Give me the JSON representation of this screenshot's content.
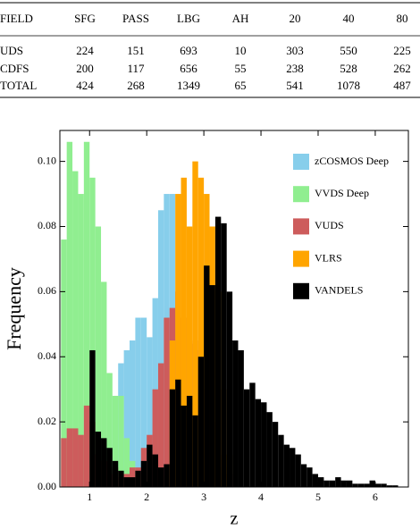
{
  "table": {
    "header": [
      "FIELD",
      "SFG",
      "PASS",
      "LBG",
      "AH",
      "20",
      "40",
      "80"
    ],
    "rows": [
      [
        "UDS",
        "224",
        "151",
        "693",
        "10",
        "303",
        "550",
        "225"
      ],
      [
        "CDFS",
        "200",
        "117",
        "656",
        "55",
        "238",
        "528",
        "262"
      ],
      [
        "TOTAL",
        "424",
        "268",
        "1349",
        "65",
        "541",
        "1078",
        "487"
      ]
    ]
  },
  "chart_data": {
    "type": "histogram",
    "xlabel": "z",
    "ylabel": "Frequency",
    "xlim": [
      0.48,
      6.58
    ],
    "ylim": [
      0,
      0.1095
    ],
    "xticks": [
      1,
      2,
      3,
      4,
      5,
      6
    ],
    "yticks": [
      {
        "value": 0,
        "label": "0.00"
      },
      {
        "value": 0.02,
        "label": "0.02"
      },
      {
        "value": 0.04,
        "label": "0.04"
      },
      {
        "value": 0.06,
        "label": "0.06"
      },
      {
        "value": 0.08,
        "label": "0.08"
      },
      {
        "value": 0.1,
        "label": "0.10"
      }
    ],
    "legend": "upper right",
    "bins": [
      0.5,
      0.6,
      0.7,
      0.8,
      0.9,
      1.0,
      1.1,
      1.2,
      1.3,
      1.4,
      1.5,
      1.6,
      1.7,
      1.8,
      1.9,
      2.0,
      2.1,
      2.2,
      2.3,
      2.4,
      2.5,
      2.6,
      2.7,
      2.8,
      2.9,
      3.0,
      3.1,
      3.2,
      3.3,
      3.4,
      3.5,
      3.6,
      3.7,
      3.8,
      3.9,
      4.0,
      4.1,
      4.2,
      4.3,
      4.4,
      4.5,
      4.6,
      4.7,
      4.8,
      4.9,
      5.0,
      5.1,
      5.2,
      5.3,
      5.4,
      5.5,
      5.6,
      5.7,
      5.8,
      5.9,
      6.0,
      6.1,
      6.2,
      6.3,
      6.4
    ],
    "series": [
      {
        "name": "zCOSMOS Deep",
        "color": "#87ceeb",
        "values": [
          0,
          0,
          0,
          0,
          0,
          0,
          0,
          0,
          0,
          0.028,
          0.038,
          0.042,
          0.045,
          0.052,
          0.052,
          0.046,
          0.058,
          0.085,
          0.09,
          0.09,
          0.02,
          0.01,
          0,
          0,
          0,
          0,
          0,
          0,
          0,
          0,
          0,
          0,
          0,
          0,
          0,
          0,
          0,
          0,
          0,
          0,
          0,
          0,
          0,
          0,
          0,
          0,
          0,
          0,
          0,
          0,
          0,
          0,
          0,
          0,
          0,
          0,
          0,
          0,
          0
        ]
      },
      {
        "name": "VVDS Deep",
        "color": "#90ee90",
        "values": [
          0.076,
          0.106,
          0.097,
          0.09,
          0.106,
          0.095,
          0.08,
          0.063,
          0.035,
          0.028,
          0.028,
          0.015,
          0.008,
          0.004,
          0.004,
          0.008,
          0.005,
          0.003,
          0.001,
          0,
          0,
          0,
          0,
          0,
          0,
          0,
          0,
          0,
          0,
          0,
          0,
          0,
          0,
          0,
          0,
          0,
          0,
          0,
          0,
          0,
          0,
          0,
          0,
          0,
          0,
          0,
          0,
          0,
          0,
          0,
          0,
          0,
          0,
          0,
          0,
          0,
          0,
          0,
          0
        ]
      },
      {
        "name": "VUDS",
        "color": "#cd5c5c",
        "values": [
          0.015,
          0.018,
          0.018,
          0.016,
          0.025,
          0.02,
          0.01,
          0.008,
          0.004,
          0.006,
          0.003,
          0.004,
          0.006,
          0.006,
          0.012,
          0.016,
          0.03,
          0.038,
          0.052,
          0.055,
          0.06,
          0.052,
          0.044,
          0.045,
          0.042,
          0.03,
          0.02,
          0.01,
          0.006,
          0.004,
          0,
          0,
          0,
          0,
          0,
          0,
          0,
          0,
          0,
          0,
          0,
          0,
          0,
          0,
          0,
          0,
          0,
          0,
          0,
          0,
          0,
          0,
          0,
          0,
          0,
          0,
          0,
          0,
          0
        ]
      },
      {
        "name": "VLRS",
        "color": "#ffa500",
        "values": [
          0,
          0,
          0,
          0,
          0,
          0,
          0,
          0,
          0,
          0,
          0,
          0,
          0,
          0,
          0,
          0,
          0,
          0,
          0,
          0.045,
          0.09,
          0.095,
          0.08,
          0.1,
          0.095,
          0.09,
          0.08,
          0.06,
          0.03,
          0.01,
          0,
          0,
          0,
          0,
          0,
          0,
          0,
          0,
          0,
          0,
          0,
          0,
          0,
          0,
          0,
          0,
          0,
          0,
          0,
          0,
          0,
          0,
          0,
          0,
          0,
          0,
          0,
          0,
          0
        ]
      },
      {
        "name": "VANDELS",
        "color": "#000000",
        "values": [
          0,
          0,
          0,
          0,
          0,
          0.042,
          0.017,
          0.015,
          0.012,
          0.008,
          0.005,
          0.003,
          0.003,
          0.005,
          0.008,
          0.013,
          0.01,
          0.006,
          0.007,
          0.03,
          0.033,
          0.025,
          0.028,
          0.022,
          0.04,
          0.068,
          0.062,
          0.083,
          0.081,
          0.06,
          0.045,
          0.042,
          0.03,
          0.032,
          0.027,
          0.026,
          0.023,
          0.02,
          0.016,
          0.013,
          0.012,
          0.01,
          0.007,
          0.006,
          0.004,
          0.003,
          0.002,
          0.002,
          0.003,
          0.002,
          0.002,
          0.001,
          0.001,
          0.001,
          0.002,
          0.001,
          0.001,
          0.0005,
          0.0005
        ]
      }
    ]
  }
}
